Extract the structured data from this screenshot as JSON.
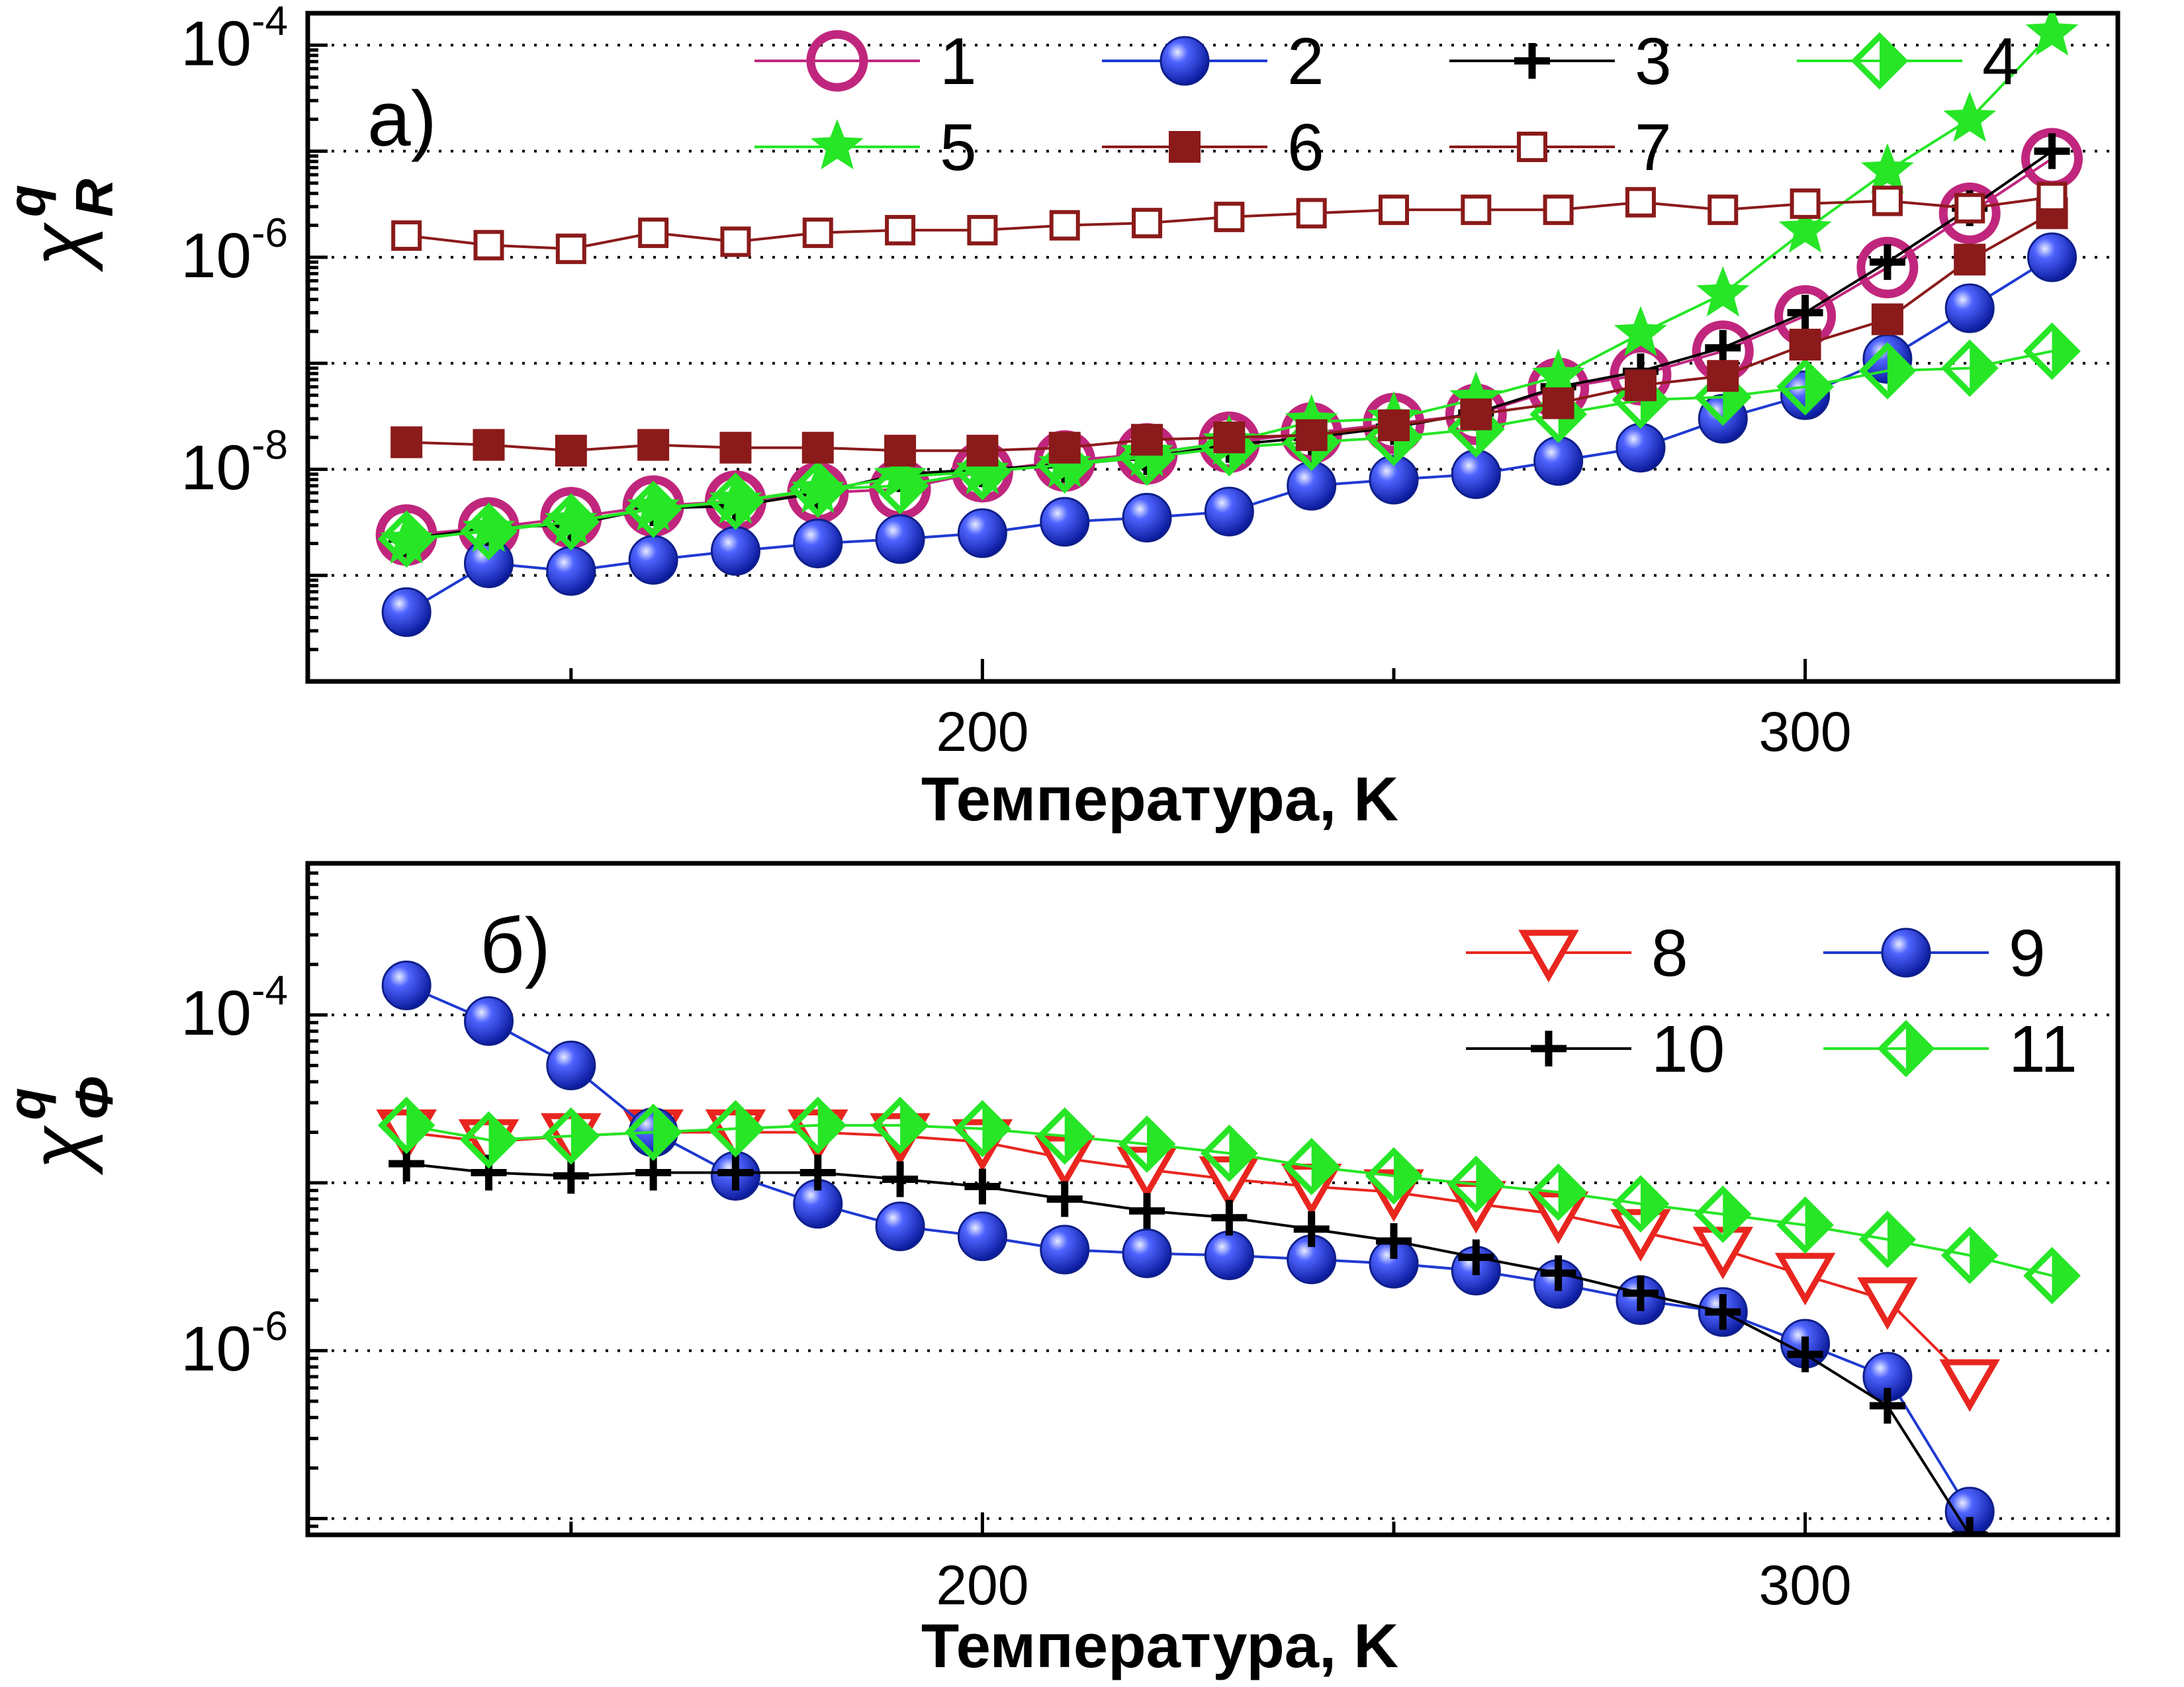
{
  "chart_data": [
    {
      "type": "line",
      "panel_label": "а)",
      "xlabel": "Температура,  K",
      "ylabel": "χ",
      "ylabel_super": "q",
      "ylabel_sub": "R",
      "y_scale": "log",
      "xlim": [
        118,
        338
      ],
      "ylim": [
        1e-10,
        0.0002
      ],
      "x_ticks": [
        200,
        300
      ],
      "y_tick_labels": [
        {
          "base": "10",
          "exp": "-4",
          "value": 0.0001
        },
        {
          "base": "10",
          "exp": "-6",
          "value": 1e-06
        },
        {
          "base": "10",
          "exp": "-8",
          "value": 1e-08
        }
      ],
      "grid": "horizontal dotted",
      "legend_placement": "top-right",
      "x": [
        130,
        140,
        150,
        160,
        170,
        180,
        190,
        200,
        210,
        220,
        230,
        240,
        250,
        260,
        270,
        280,
        290,
        300,
        310,
        320,
        330
      ],
      "series": [
        {
          "name": "1",
          "color": "#c0267d",
          "marker": "open-circle",
          "values": [
            2.4e-09,
            2.8e-09,
            3.5e-09,
            4.5e-09,
            5e-09,
            6e-09,
            6.5e-09,
            9.5e-09,
            1.2e-08,
            1.4e-08,
            1.8e-08,
            2.2e-08,
            2.7e-08,
            3.3e-08,
            5.8e-08,
            7.8e-08,
            1.3e-07,
            2.8e-07,
            8e-07,
            2.6e-06,
            8.5e-06
          ]
        },
        {
          "name": "2",
          "color": "#1f3ad1",
          "marker": "filled-sphere",
          "values": [
            4.5e-10,
            1.3e-09,
            1.1e-09,
            1.4e-09,
            1.7e-09,
            2e-09,
            2.2e-09,
            2.5e-09,
            3.2e-09,
            3.5e-09,
            4e-09,
            7e-09,
            8e-09,
            9e-09,
            1.2e-08,
            1.6e-08,
            3e-08,
            5e-08,
            1.1e-07,
            3.3e-07,
            1e-06
          ]
        },
        {
          "name": "3",
          "color": "#000000",
          "marker": "plus",
          "values": [
            2.2e-09,
            2.8e-09,
            3e-09,
            4.3e-09,
            4.5e-09,
            6e-09,
            9e-09,
            1e-08,
            1.1e-08,
            1.3e-08,
            1.7e-08,
            2e-08,
            2.5e-08,
            3.4e-08,
            6e-08,
            8.4e-08,
            1.4e-07,
            3e-07,
            9e-07,
            2.9e-06,
            1e-05
          ]
        },
        {
          "name": "4",
          "color": "#26e626",
          "marker": "half-diamond",
          "values": [
            2.2e-09,
            2.6e-09,
            3.2e-09,
            4.2e-09,
            5e-09,
            6.5e-09,
            7e-09,
            9.5e-09,
            1.1e-08,
            1.3e-08,
            1.6e-08,
            1.8e-08,
            2e-08,
            2.4e-08,
            3.3e-08,
            4.5e-08,
            4.8e-08,
            6e-08,
            8.5e-08,
            9e-08,
            1.3e-07
          ]
        },
        {
          "name": "5",
          "color": "#26e626",
          "marker": "star",
          "values": [
            2.1e-09,
            2.7e-09,
            3.2e-09,
            4.3e-09,
            5e-09,
            6.3e-09,
            8.5e-09,
            9.5e-09,
            1.1e-08,
            1.4e-08,
            1.8e-08,
            2.8e-08,
            3e-08,
            4.6e-08,
            7.5e-08,
            1.9e-07,
            4.5e-07,
            1.8e-06,
            6.5e-06,
            2e-05,
            0.00013
          ]
        },
        {
          "name": "6",
          "color": "#8b1a1a",
          "marker": "filled-square",
          "values": [
            1.8e-08,
            1.7e-08,
            1.5e-08,
            1.7e-08,
            1.6e-08,
            1.6e-08,
            1.5e-08,
            1.5e-08,
            1.6e-08,
            1.9e-08,
            2e-08,
            2.1e-08,
            2.6e-08,
            3.3e-08,
            4.2e-08,
            6.2e-08,
            7.6e-08,
            1.5e-07,
            2.6e-07,
            9.5e-07,
            2.6e-06
          ]
        },
        {
          "name": "7",
          "color": "#8b1a1a",
          "marker": "open-square",
          "values": [
            1.6e-06,
            1.3e-06,
            1.2e-06,
            1.7e-06,
            1.4e-06,
            1.7e-06,
            1.8e-06,
            1.8e-06,
            2e-06,
            2.1e-06,
            2.4e-06,
            2.6e-06,
            2.8e-06,
            2.8e-06,
            2.8e-06,
            3.3e-06,
            2.8e-06,
            3.2e-06,
            3.4e-06,
            2.9e-06,
            3.7e-06
          ]
        }
      ]
    },
    {
      "type": "line",
      "panel_label": "б)",
      "xlabel": "Температура,  K",
      "ylabel": "χ",
      "ylabel_super": "q",
      "ylabel_sub": "Φ",
      "y_scale": "log",
      "xlim": [
        118,
        338
      ],
      "ylim": [
        8e-08,
        0.0008
      ],
      "x_ticks": [
        200,
        300
      ],
      "y_tick_labels": [
        {
          "base": "10",
          "exp": "-4",
          "value": 0.0001
        },
        {
          "base": "10",
          "exp": "-6",
          "value": 1e-06
        }
      ],
      "grid": "horizontal dotted",
      "legend_placement": "top-right",
      "x": [
        130,
        140,
        150,
        160,
        170,
        180,
        190,
        200,
        210,
        220,
        230,
        240,
        250,
        260,
        270,
        280,
        290,
        300,
        310,
        320,
        330
      ],
      "series": [
        {
          "name": "8",
          "color": "#e8261f",
          "marker": "open-triangle-down",
          "values": [
            2e-05,
            1.75e-05,
            1.9e-05,
            2e-05,
            2e-05,
            2e-05,
            1.9e-05,
            1.75e-05,
            1.4e-05,
            1.2e-05,
            1.05e-05,
            9.5e-06,
            8.8e-06,
            7.5e-06,
            6.5e-06,
            5.1e-06,
            4e-06,
            2.8e-06,
            2e-06,
            6.5e-07,
            null
          ]
        },
        {
          "name": "9",
          "color": "#1f3ad1",
          "marker": "filled-sphere",
          "values": [
            0.00015,
            9.2e-05,
            5e-05,
            2e-05,
            1.1e-05,
            7.5e-06,
            5.5e-06,
            4.8e-06,
            4e-06,
            3.8e-06,
            3.7e-06,
            3.5e-06,
            3.3e-06,
            3e-06,
            2.5e-06,
            2e-06,
            1.7e-06,
            1.1e-06,
            7e-07,
            1.1e-07,
            null
          ]
        },
        {
          "name": "10",
          "color": "#000000",
          "marker": "plus",
          "values": [
            1.3e-05,
            1.15e-05,
            1.1e-05,
            1.15e-05,
            1.15e-05,
            1.15e-05,
            1.05e-05,
            9.5e-06,
            8e-06,
            6.8e-06,
            6.2e-06,
            5.3e-06,
            4.5e-06,
            3.6e-06,
            2.9e-06,
            2.2e-06,
            1.7e-06,
            9.5e-07,
            4.7e-07,
            8e-08,
            null
          ]
        },
        {
          "name": "11",
          "color": "#26e626",
          "marker": "half-diamond",
          "values": [
            2.2e-05,
            1.8e-05,
            1.9e-05,
            2e-05,
            2.1e-05,
            2.2e-05,
            2.2e-05,
            2.1e-05,
            1.9e-05,
            1.7e-05,
            1.5e-05,
            1.25e-05,
            1.1e-05,
            9.8e-06,
            8.8e-06,
            7.5e-06,
            6.5e-06,
            5.6e-06,
            4.6e-06,
            3.7e-06,
            2.8e-06
          ]
        }
      ]
    }
  ]
}
